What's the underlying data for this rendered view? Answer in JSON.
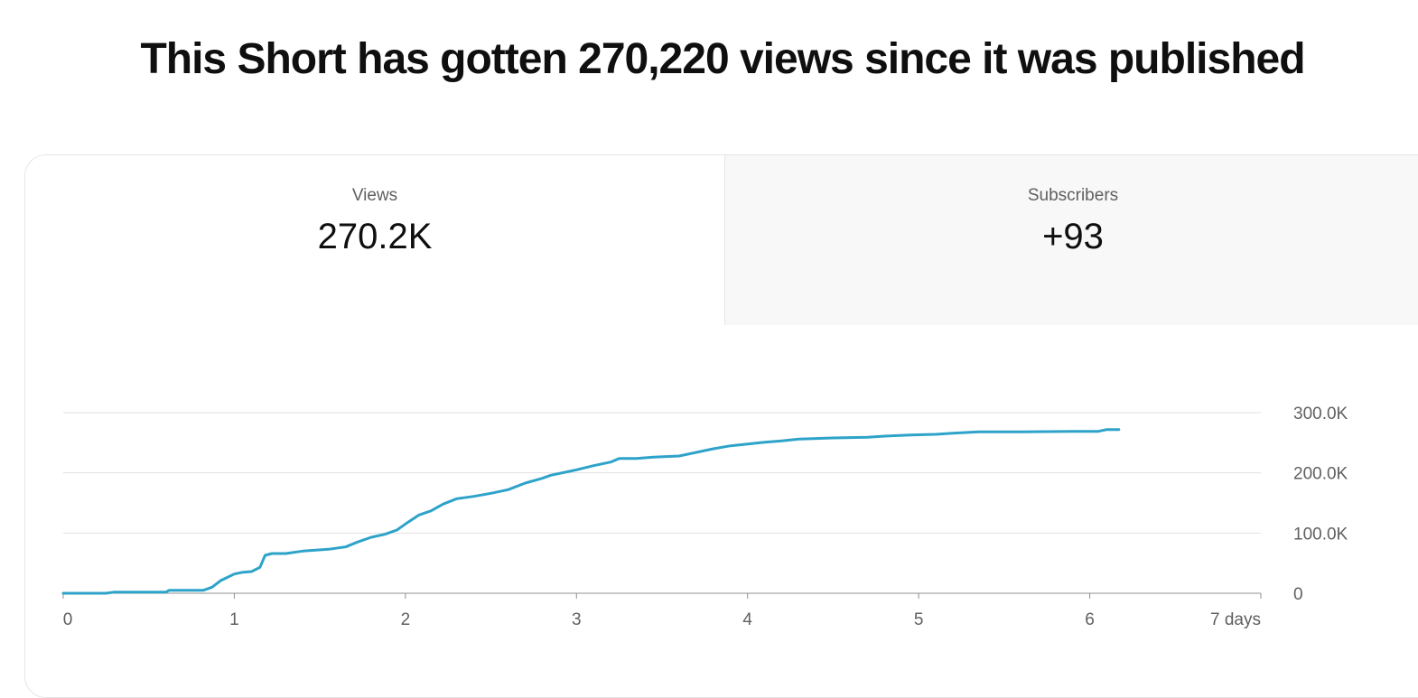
{
  "headline": "This Short has gotten 270,220 views since it was published",
  "tabs": [
    {
      "label": "Views",
      "value": "270.2K",
      "selected": true
    },
    {
      "label": "Subscribers",
      "value": "+93",
      "selected": false
    }
  ],
  "colors": {
    "line": "#2ea3c9",
    "grid": "#e0e0e0",
    "axis": "#909090",
    "text": "#606060"
  },
  "chart_data": {
    "type": "line",
    "title": "",
    "xlabel": "",
    "ylabel": "",
    "xlim": [
      0,
      7
    ],
    "ylim": [
      0,
      300000
    ],
    "x_ticks": [
      "0",
      "1",
      "2",
      "3",
      "4",
      "5",
      "6",
      "7 days"
    ],
    "y_ticks": [
      "0",
      "100.0K",
      "200.0K",
      "300.0K"
    ],
    "y_axis_position": "right",
    "grid": true,
    "series": [
      {
        "values": [
          [
            0,
            0
          ],
          [
            0.25,
            0
          ],
          [
            0.3,
            2000
          ],
          [
            0.6,
            2000
          ],
          [
            0.62,
            5000
          ],
          [
            0.82,
            5000
          ],
          [
            0.87,
            10000
          ],
          [
            0.92,
            21000
          ],
          [
            1.0,
            32000
          ],
          [
            1.05,
            35000
          ],
          [
            1.1,
            36000
          ],
          [
            1.15,
            43000
          ],
          [
            1.18,
            63000
          ],
          [
            1.22,
            66000
          ],
          [
            1.3,
            66000
          ],
          [
            1.4,
            70000
          ],
          [
            1.55,
            73000
          ],
          [
            1.65,
            77000
          ],
          [
            1.72,
            85000
          ],
          [
            1.8,
            93000
          ],
          [
            1.88,
            98000
          ],
          [
            1.95,
            105000
          ],
          [
            2.0,
            115000
          ],
          [
            2.08,
            130000
          ],
          [
            2.15,
            137000
          ],
          [
            2.22,
            148000
          ],
          [
            2.3,
            157000
          ],
          [
            2.4,
            161000
          ],
          [
            2.5,
            166000
          ],
          [
            2.6,
            172000
          ],
          [
            2.7,
            183000
          ],
          [
            2.8,
            191000
          ],
          [
            2.85,
            196000
          ],
          [
            3.0,
            205000
          ],
          [
            3.1,
            212000
          ],
          [
            3.2,
            218000
          ],
          [
            3.25,
            224000
          ],
          [
            3.35,
            224000
          ],
          [
            3.45,
            226000
          ],
          [
            3.6,
            228000
          ],
          [
            3.7,
            234000
          ],
          [
            3.8,
            240000
          ],
          [
            3.9,
            245000
          ],
          [
            4.0,
            248000
          ],
          [
            4.1,
            251000
          ],
          [
            4.2,
            253000
          ],
          [
            4.3,
            256000
          ],
          [
            4.5,
            258000
          ],
          [
            4.7,
            259000
          ],
          [
            4.8,
            261000
          ],
          [
            4.95,
            263000
          ],
          [
            5.1,
            264000
          ],
          [
            5.2,
            266000
          ],
          [
            5.35,
            268000
          ],
          [
            5.6,
            268000
          ],
          [
            5.9,
            269000
          ],
          [
            6.05,
            269000
          ],
          [
            6.1,
            272000
          ],
          [
            6.17,
            272000
          ]
        ]
      }
    ]
  }
}
